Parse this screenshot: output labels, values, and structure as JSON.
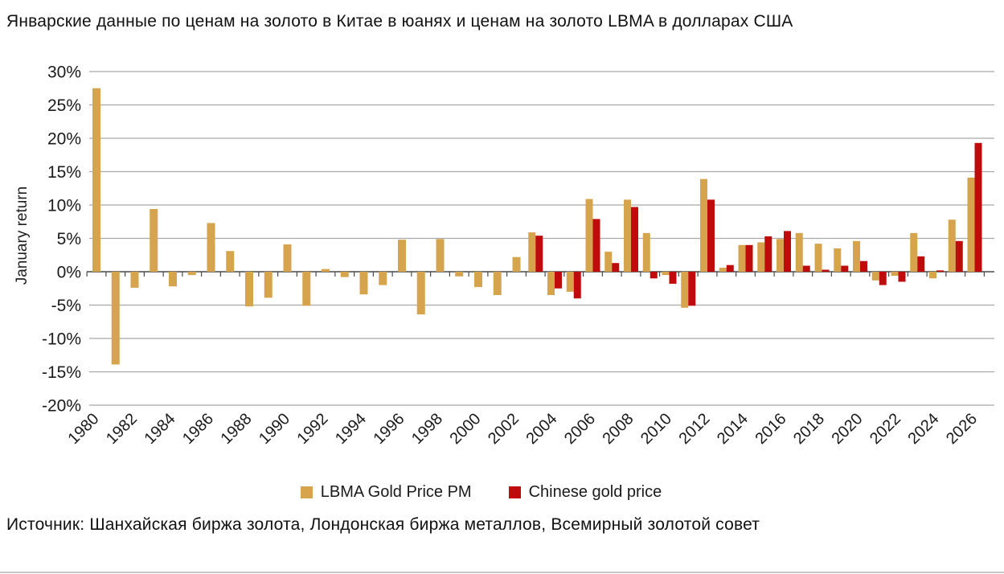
{
  "page": {
    "title": "Январские данные по ценам на золото в Китае в юанях и ценам на золото LBMA в долларах США",
    "source": "Источник: Шанхайская биржа золота, Лондонская биржа металлов, Всемирный золотой совет"
  },
  "chart_data": {
    "type": "bar",
    "title": "Январские данные по ценам на золото в Китае в юанях и ценам на золото LBMA в долларах США",
    "xlabel": "",
    "ylabel": "January return",
    "ylim": [
      -20,
      30
    ],
    "grid": true,
    "legend_position": "bottom",
    "y_ticks": [
      30,
      25,
      20,
      15,
      10,
      5,
      0,
      -5,
      -10,
      -15,
      -20
    ],
    "y_tick_suffix": "%",
    "x_tick_labels": [
      1980,
      1982,
      1984,
      1986,
      1988,
      1990,
      1992,
      1994,
      1996,
      1998,
      2000,
      2002,
      2004,
      2006,
      2008,
      2010,
      2012,
      2014,
      2016,
      2018,
      2020,
      2022,
      2024,
      2026
    ],
    "categories": [
      1980,
      1981,
      1982,
      1983,
      1984,
      1985,
      1986,
      1987,
      1988,
      1989,
      1990,
      1991,
      1992,
      1993,
      1994,
      1995,
      1996,
      1997,
      1998,
      1999,
      2000,
      2001,
      2002,
      2003,
      2004,
      2005,
      2006,
      2007,
      2008,
      2009,
      2010,
      2011,
      2012,
      2013,
      2014,
      2015,
      2016,
      2017,
      2018,
      2019,
      2020,
      2021,
      2022,
      2023,
      2024,
      2025,
      2026
    ],
    "series": [
      {
        "name": "LBMA Gold Price PM",
        "color": "#D6A44C",
        "values": [
          27.5,
          -13.9,
          -2.4,
          9.4,
          -2.2,
          -0.5,
          7.3,
          3.1,
          -5.2,
          -3.9,
          4.1,
          -5.1,
          0.4,
          -0.8,
          -3.4,
          -2.0,
          4.8,
          -6.4,
          4.9,
          -0.7,
          -2.3,
          -3.5,
          2.2,
          5.9,
          -3.5,
          -3.0,
          10.9,
          3.0,
          10.8,
          5.8,
          -0.5,
          -5.4,
          13.9,
          0.6,
          4.0,
          4.4,
          4.9,
          5.8,
          4.2,
          3.5,
          4.6,
          -1.3,
          -0.6,
          5.8,
          -1.0,
          7.8,
          14.1
        ]
      },
      {
        "name": "Chinese gold price",
        "color": "#C00B0C",
        "values": [
          null,
          null,
          null,
          null,
          null,
          null,
          null,
          null,
          null,
          null,
          null,
          null,
          null,
          null,
          null,
          null,
          null,
          null,
          null,
          null,
          null,
          null,
          null,
          5.4,
          -2.5,
          -4.0,
          7.9,
          1.3,
          9.7,
          -1.0,
          -1.8,
          -5.1,
          10.8,
          1.0,
          4.0,
          5.3,
          6.1,
          0.9,
          0.3,
          0.9,
          1.6,
          -2.0,
          -1.5,
          2.3,
          0.2,
          4.6,
          19.3
        ]
      }
    ],
    "colors": {
      "gridline": "#A9A9A9",
      "axis": "#4A4A4A",
      "tick_text": "#1a1a1a"
    }
  }
}
